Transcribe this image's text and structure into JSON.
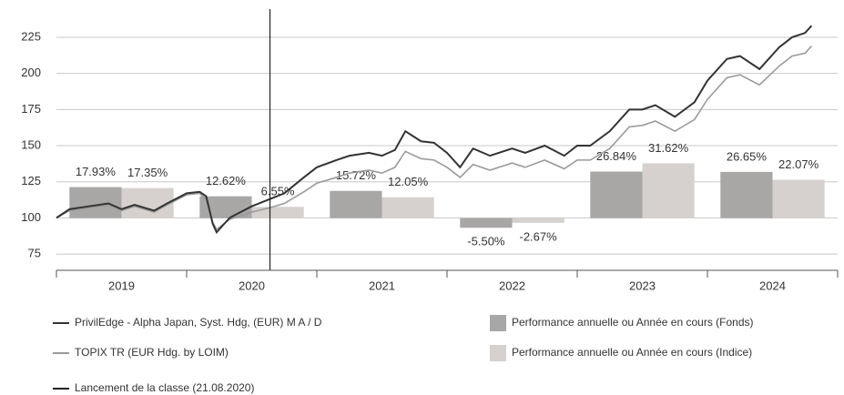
{
  "chart_data": {
    "type": "combo",
    "categories": [
      "2019",
      "2020",
      "2021",
      "2022",
      "2023",
      "2024"
    ],
    "ylim": [
      63.7,
      244.5
    ],
    "yticks": [
      75,
      100,
      125,
      150,
      175,
      200,
      225
    ],
    "grid": true,
    "y2lim": [
      -30,
      120.4
    ],
    "xlim": [
      2019,
      2025
    ],
    "bar_series": [
      {
        "name": "Performance annuelle ou Année en cours (Fonds)",
        "color": "#a9a6a6",
        "axis": "y2",
        "values": [
          17.93,
          12.62,
          15.72,
          -5.5,
          26.84,
          26.65
        ],
        "value_labels": [
          "17.93%",
          "12.62%",
          "15.72%",
          "-5.50%",
          "26.84%",
          "26.65%"
        ]
      },
      {
        "name": "Performance annuelle ou Année en cours (Indice)",
        "color": "#d6d1ce",
        "axis": "y2",
        "values": [
          17.35,
          6.55,
          12.05,
          -2.67,
          31.62,
          22.07
        ],
        "value_labels": [
          "17.35%",
          "6.55%",
          "12.05%",
          "-2.67%",
          "31.62%",
          "22.07%"
        ]
      }
    ],
    "line_series": [
      {
        "name": "PrivilEdge - Alpha Japan, Syst. Hdg, (EUR) M A / D",
        "color": "#333333",
        "x": [
          2019.0,
          2019.1,
          2019.25,
          2019.4,
          2019.5,
          2019.6,
          2019.75,
          2019.85,
          2020.0,
          2020.1,
          2020.15,
          2020.2,
          2020.23,
          2020.33,
          2020.5,
          2020.64,
          2020.75,
          2020.9,
          2021.0,
          2021.15,
          2021.25,
          2021.4,
          2021.5,
          2021.6,
          2021.68,
          2021.8,
          2021.9,
          2022.0,
          2022.1,
          2022.2,
          2022.33,
          2022.5,
          2022.6,
          2022.75,
          2022.9,
          2023.0,
          2023.1,
          2023.25,
          2023.4,
          2023.5,
          2023.6,
          2023.75,
          2023.9,
          2024.0,
          2024.15,
          2024.25,
          2024.4,
          2024.55,
          2024.65,
          2024.75,
          2024.8
        ],
        "values": [
          100,
          106,
          108,
          110,
          106,
          109,
          105,
          110,
          117,
          118,
          115,
          96,
          90,
          100,
          108,
          113,
          117,
          128,
          135,
          140,
          143,
          145,
          143,
          147,
          160,
          153,
          152,
          145,
          135,
          148,
          143,
          148,
          145,
          150,
          143,
          150,
          150,
          160,
          175,
          175,
          178,
          170,
          180,
          195,
          210,
          212,
          203,
          218,
          225,
          228,
          233
        ]
      },
      {
        "name": "TOPIX TR (EUR Hdg. by LOIM)",
        "color": "#9a9a9a",
        "x": [
          2019.0,
          2019.1,
          2019.25,
          2019.4,
          2019.5,
          2019.6,
          2019.75,
          2019.85,
          2020.0,
          2020.1,
          2020.15,
          2020.2,
          2020.23,
          2020.33,
          2020.5,
          2020.64,
          2020.75,
          2020.9,
          2021.0,
          2021.15,
          2021.25,
          2021.4,
          2021.5,
          2021.6,
          2021.68,
          2021.8,
          2021.9,
          2022.0,
          2022.1,
          2022.2,
          2022.33,
          2022.5,
          2022.6,
          2022.75,
          2022.9,
          2023.0,
          2023.1,
          2023.25,
          2023.4,
          2023.5,
          2023.6,
          2023.75,
          2023.9,
          2024.0,
          2024.15,
          2024.25,
          2024.4,
          2024.55,
          2024.65,
          2024.75,
          2024.8
        ],
        "values": [
          100,
          105,
          107,
          109,
          105,
          108,
          104,
          109,
          116,
          117,
          113,
          97,
          92,
          99,
          104,
          107,
          110,
          118,
          124,
          128,
          131,
          133,
          131,
          135,
          146,
          141,
          140,
          135,
          128,
          137,
          133,
          138,
          135,
          140,
          134,
          140,
          140,
          148,
          163,
          164,
          167,
          160,
          168,
          182,
          197,
          199,
          192,
          205,
          212,
          214,
          219
        ]
      }
    ],
    "launch": {
      "x": 2020.64,
      "label": "Lancement de la classe (21.08.2020)",
      "color": "#222222"
    }
  }
}
